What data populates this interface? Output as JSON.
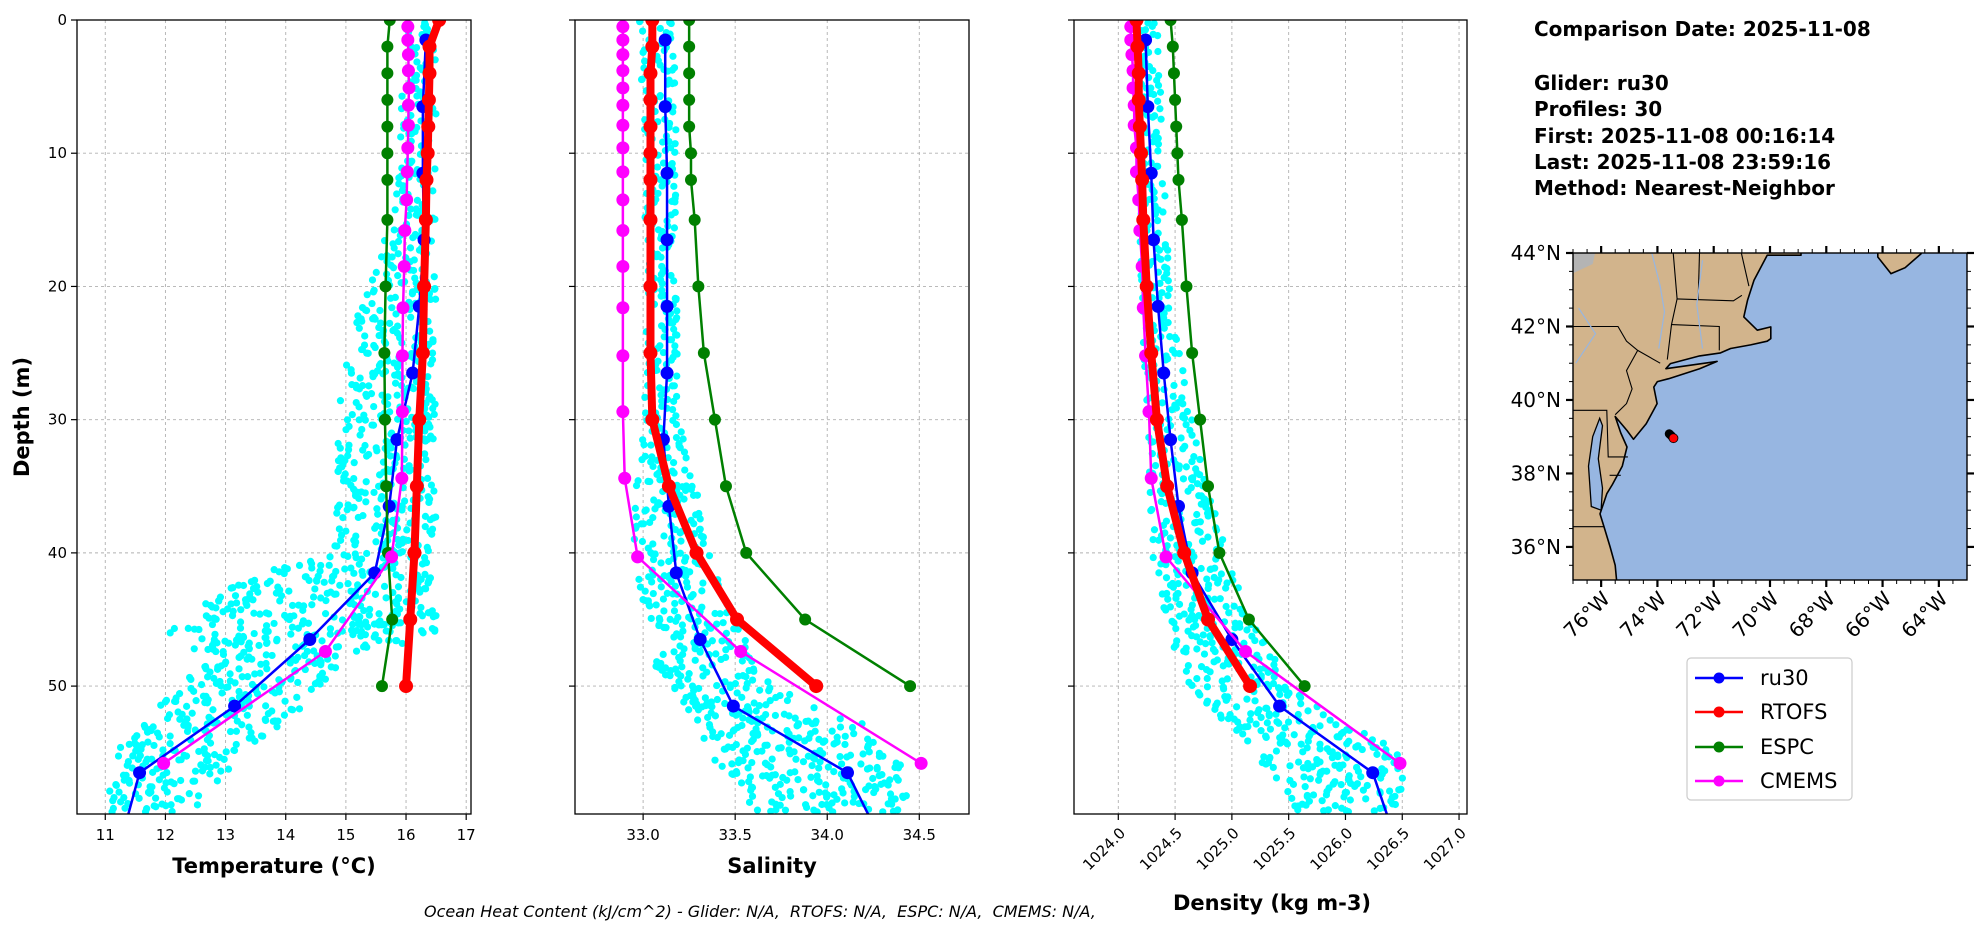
{
  "chart_data": {
    "type": "line",
    "ylabel": "Depth (m)",
    "ylim": [
      59.6,
      0
    ],
    "yticks": [
      0,
      10,
      20,
      30,
      40,
      50
    ],
    "ytick_labels": [
      "0",
      "10",
      "20",
      "30",
      "40",
      "50"
    ],
    "y_inverted": true,
    "grid": true,
    "glider_scatter_color": "#00ffff",
    "models": [
      {
        "name": "ru30",
        "color": "#0000ff",
        "depths": [
          1.5,
          6.5,
          11.5,
          16.5,
          21.5,
          26.5,
          31.5,
          36.5,
          41.5,
          46.5,
          51.5,
          56.5,
          61.5
        ]
      },
      {
        "name": "RTOFS",
        "color": "#ff0000",
        "depths": [
          0,
          2,
          4,
          6,
          8,
          10,
          12,
          15,
          20,
          25,
          30,
          35,
          40,
          45,
          50
        ]
      },
      {
        "name": "ESPC",
        "color": "#008000",
        "depths": [
          0,
          2,
          4,
          6,
          8,
          10,
          12,
          15,
          20,
          25,
          30,
          35,
          40,
          45,
          50
        ]
      },
      {
        "name": "CMEMS",
        "color": "#ff00ff",
        "depths": [
          0.5,
          1.5,
          2.6,
          3.8,
          5.1,
          6.4,
          7.9,
          9.6,
          11.4,
          13.5,
          15.8,
          18.5,
          21.6,
          25.2,
          29.4,
          34.4,
          40.3,
          47.4,
          55.8
        ]
      }
    ],
    "panels": [
      {
        "xlabel": "Temperature (°C)",
        "xlim": [
          10.53,
          17.08
        ],
        "xticks": [
          11,
          12,
          13,
          14,
          15,
          16,
          17
        ],
        "xtick_labels": [
          "11",
          "12",
          "13",
          "14",
          "15",
          "16",
          "17"
        ],
        "values": {
          "ru30": [
            16.33,
            16.28,
            16.28,
            16.3,
            16.22,
            16.11,
            15.85,
            15.72,
            15.48,
            14.4,
            13.15,
            11.57,
            11.27
          ],
          "RTOFS": [
            16.55,
            16.39,
            16.39,
            16.38,
            16.37,
            16.36,
            16.34,
            16.33,
            16.3,
            16.28,
            16.22,
            16.18,
            16.14,
            16.07,
            16.0
          ],
          "ESPC": [
            15.73,
            15.69,
            15.69,
            15.69,
            15.69,
            15.69,
            15.69,
            15.69,
            15.66,
            15.64,
            15.65,
            15.67,
            15.7,
            15.77,
            15.6
          ],
          "CMEMS": [
            16.03,
            16.03,
            16.04,
            16.04,
            16.05,
            16.04,
            16.04,
            16.03,
            16.02,
            16.01,
            15.98,
            15.97,
            15.95,
            15.94,
            15.94,
            15.93,
            15.76,
            14.66,
            11.97
          ]
        },
        "glider_envelope": [
          [
            0,
            15.95,
            16.5
          ],
          [
            10,
            15.9,
            16.5
          ],
          [
            17,
            15.6,
            16.5
          ],
          [
            22,
            15.2,
            16.5
          ],
          [
            28,
            14.9,
            16.5
          ],
          [
            40,
            14.8,
            16.5
          ],
          [
            42,
            13.2,
            16.5
          ],
          [
            46,
            12.0,
            16.5
          ],
          [
            48,
            12.6,
            15.0
          ],
          [
            52,
            11.8,
            14.2
          ],
          [
            55,
            11.2,
            13.3
          ],
          [
            59.6,
            11.0,
            12.4
          ]
        ]
      },
      {
        "xlabel": "Salinity",
        "xlim": [
          32.63,
          34.77
        ],
        "xticks": [
          33.0,
          33.5,
          34.0,
          34.5
        ],
        "xtick_labels": [
          "33.0",
          "33.5",
          "34.0",
          "34.5"
        ],
        "values": {
          "ru30": [
            33.12,
            33.12,
            33.13,
            33.13,
            33.13,
            33.13,
            33.11,
            33.14,
            33.18,
            33.31,
            33.49,
            34.11,
            34.29
          ],
          "RTOFS": [
            33.05,
            33.05,
            33.04,
            33.04,
            33.04,
            33.04,
            33.04,
            33.04,
            33.04,
            33.04,
            33.05,
            33.14,
            33.29,
            33.51,
            33.94
          ],
          "ESPC": [
            33.25,
            33.25,
            33.25,
            33.25,
            33.25,
            33.26,
            33.26,
            33.28,
            33.3,
            33.33,
            33.39,
            33.45,
            33.56,
            33.88,
            34.45
          ],
          "CMEMS": [
            32.89,
            32.89,
            32.89,
            32.89,
            32.89,
            32.89,
            32.89,
            32.89,
            32.89,
            32.89,
            32.89,
            32.89,
            32.89,
            32.89,
            32.89,
            32.9,
            32.97,
            33.53,
            34.51
          ]
        },
        "glider_envelope": [
          [
            0,
            32.98,
            33.18
          ],
          [
            20,
            33.02,
            33.18
          ],
          [
            30,
            33.0,
            33.2
          ],
          [
            36,
            32.95,
            33.3
          ],
          [
            40,
            32.95,
            33.35
          ],
          [
            45,
            33.0,
            33.5
          ],
          [
            50,
            33.1,
            33.7
          ],
          [
            53,
            33.3,
            34.2
          ],
          [
            56,
            33.4,
            34.4
          ],
          [
            59.6,
            33.6,
            34.45
          ]
        ]
      },
      {
        "xlabel": "Density (kg m-3)",
        "xlim": [
          1023.61,
          1027.07
        ],
        "xticks": [
          1024.0,
          1024.5,
          1025.0,
          1025.5,
          1026.0,
          1026.5,
          1027.0
        ],
        "xtick_labels": [
          "1024.0",
          "1024.5",
          "1025.0",
          "1025.5",
          "1026.0",
          "1026.5",
          "1027.0"
        ],
        "values": {
          "ru30": [
            1024.24,
            1024.26,
            1024.29,
            1024.31,
            1024.35,
            1024.4,
            1024.46,
            1024.53,
            1024.65,
            1025.0,
            1025.42,
            1026.24,
            1026.44
          ],
          "RTOFS": [
            1024.16,
            1024.17,
            1024.18,
            1024.18,
            1024.19,
            1024.2,
            1024.21,
            1024.22,
            1024.25,
            1024.29,
            1024.34,
            1024.43,
            1024.58,
            1024.79,
            1025.16
          ],
          "ESPC": [
            1024.46,
            1024.48,
            1024.49,
            1024.5,
            1024.51,
            1024.52,
            1024.53,
            1024.56,
            1024.6,
            1024.65,
            1024.72,
            1024.79,
            1024.89,
            1025.15,
            1025.64
          ],
          "CMEMS": [
            1024.11,
            1024.11,
            1024.12,
            1024.13,
            1024.13,
            1024.14,
            1024.14,
            1024.16,
            1024.16,
            1024.18,
            1024.19,
            1024.21,
            1024.22,
            1024.24,
            1024.27,
            1024.29,
            1024.42,
            1025.12,
            1026.48
          ]
        },
        "glider_envelope": [
          [
            0,
            1024.15,
            1024.35
          ],
          [
            20,
            1024.2,
            1024.45
          ],
          [
            30,
            1024.25,
            1024.65
          ],
          [
            40,
            1024.3,
            1024.95
          ],
          [
            45,
            1024.4,
            1025.2
          ],
          [
            50,
            1024.6,
            1025.5
          ],
          [
            55,
            1025.2,
            1026.5
          ],
          [
            59.6,
            1025.6,
            1026.55
          ]
        ]
      }
    ],
    "legend": {
      "placement": "below-map",
      "entries": [
        "ru30",
        "RTOFS",
        "ESPC",
        "CMEMS"
      ]
    }
  },
  "info": {
    "comparison_date": "Comparison Date: 2025-11-08",
    "glider": "Glider: ru30",
    "profiles": "Profiles: 30",
    "first": "First: 2025-11-08 00:16:14",
    "last": "Last: 2025-11-08 23:59:16",
    "method": "Method: Nearest-Neighbor"
  },
  "map": {
    "extent_lon": [
      -77.0,
      -63.0
    ],
    "extent_lat": [
      35.1,
      44.0
    ],
    "lat_ticks": [
      44,
      42,
      40,
      38,
      36
    ],
    "lat_labels": [
      "44°N",
      "42°N",
      "40°N",
      "38°N",
      "36°N"
    ],
    "lon_ticks": [
      -76,
      -74,
      -72,
      -70,
      -68,
      -66,
      -64
    ],
    "lon_labels": [
      "76°W",
      "74°W",
      "72°W",
      "70°W",
      "68°W",
      "66°W",
      "64°W"
    ],
    "land_color": "#d2b48c",
    "ocean_color": "#97b6e1",
    "glider_track": [
      [
        -73.58,
        39.08
      ],
      [
        -73.54,
        39.05
      ],
      [
        -73.5,
        39.02
      ]
    ],
    "glider_track_color": "#000000",
    "location_marker": [
      -73.43,
      38.96
    ],
    "location_marker_color": "#ff0000"
  },
  "footer": "Ocean Heat Content (kJ/cm^2) - Glider: N/A,  RTOFS: N/A,  ESPC: N/A,  CMEMS: N/A,"
}
